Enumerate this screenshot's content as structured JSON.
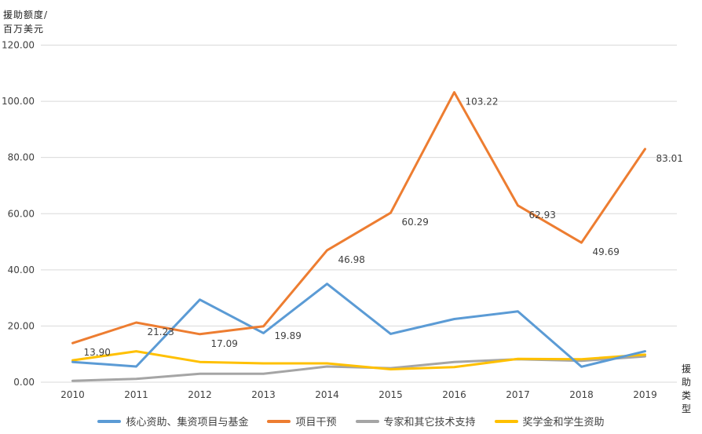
{
  "chart_data": {
    "type": "line",
    "ylabel_line1": "援助额度/",
    "ylabel_line2": "百万美元",
    "xlabel": "援助类型",
    "x": [
      "2010",
      "2011",
      "2012",
      "2013",
      "2014",
      "2015",
      "2016",
      "2017",
      "2018",
      "2019"
    ],
    "ylim": [
      0,
      120
    ],
    "yticks": [
      "0.00",
      "20.00",
      "40.00",
      "60.00",
      "80.00",
      "100.00",
      "120.00"
    ],
    "grid": true,
    "legend_position": "bottom",
    "series": [
      {
        "name": "核心资助、集资项目与基金",
        "color": "#5b9bd5",
        "values": [
          7.2,
          5.6,
          29.4,
          17.5,
          35.0,
          17.2,
          22.5,
          25.2,
          5.5,
          11.0
        ]
      },
      {
        "name": "项目干预",
        "color": "#ed7d31",
        "values": [
          13.9,
          21.23,
          17.09,
          19.89,
          46.98,
          60.29,
          103.22,
          62.93,
          49.69,
          83.01
        ],
        "labels": [
          "13.90",
          "21.23",
          "17.09",
          "19.89",
          "46.98",
          "60.29",
          "103.22",
          "62.93",
          "49.69",
          "83.01"
        ]
      },
      {
        "name": "专家和其它技术支持",
        "color": "#a5a5a5",
        "values": [
          0.5,
          1.2,
          3.0,
          3.0,
          5.6,
          5.0,
          7.2,
          8.2,
          7.6,
          9.2
        ]
      },
      {
        "name": "奖学金和学生资助",
        "color": "#ffc000",
        "values": [
          7.8,
          11.0,
          7.2,
          6.7,
          6.7,
          4.6,
          5.4,
          8.3,
          8.2,
          9.8
        ]
      }
    ]
  }
}
